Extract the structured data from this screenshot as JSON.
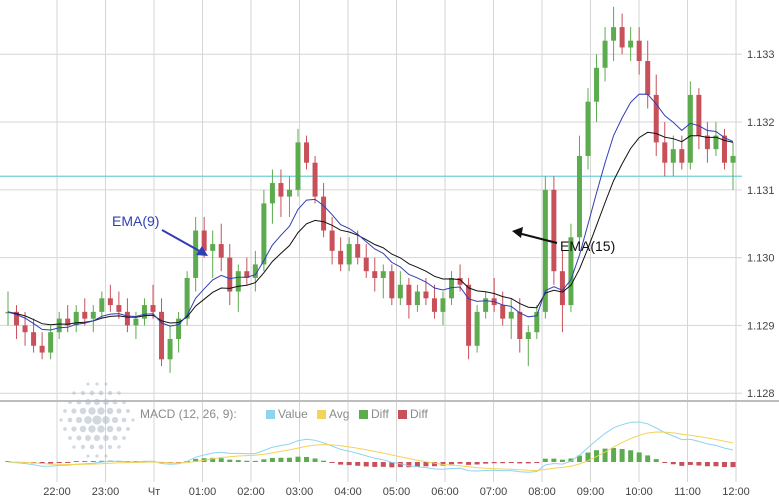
{
  "chart_data": {
    "type": "candlestick",
    "price_axis": {
      "ticks": [
        "1.128",
        "1.129",
        "1.130",
        "1.131",
        "1.132",
        "1.133"
      ],
      "ylim": [
        1.1279,
        1.1338
      ]
    },
    "time_axis": {
      "ticks": [
        "22:00",
        "23:00",
        "Чт",
        "01:00",
        "02:00",
        "03:00",
        "04:00",
        "05:00",
        "06:00",
        "07:00",
        "08:00",
        "09:00",
        "10:00",
        "11:00",
        "12:00"
      ]
    },
    "grid": true,
    "horizontal_line": {
      "value": 1.1312,
      "color": "#6fcfd6"
    },
    "series_colors": {
      "up": "#5cab4f",
      "down": "#c8505a",
      "ema9": "#2f3fb3",
      "ema15": "#111111"
    },
    "candles": [
      [
        1.1292,
        1.1295,
        1.129,
        1.1292
      ],
      [
        1.1292,
        1.1293,
        1.1288,
        1.129
      ],
      [
        1.129,
        1.1292,
        1.1287,
        1.1289
      ],
      [
        1.1289,
        1.1291,
        1.1286,
        1.1287
      ],
      [
        1.1287,
        1.1289,
        1.1285,
        1.1286
      ],
      [
        1.1286,
        1.129,
        1.1285,
        1.1289
      ],
      [
        1.1289,
        1.1292,
        1.1288,
        1.1291
      ],
      [
        1.1291,
        1.1293,
        1.1289,
        1.129
      ],
      [
        1.129,
        1.1293,
        1.1289,
        1.1292
      ],
      [
        1.1292,
        1.1294,
        1.129,
        1.1291
      ],
      [
        1.1291,
        1.1293,
        1.1289,
        1.1292
      ],
      [
        1.1292,
        1.1295,
        1.1291,
        1.1294
      ],
      [
        1.1294,
        1.1296,
        1.1292,
        1.1293
      ],
      [
        1.1293,
        1.1295,
        1.1291,
        1.1292
      ],
      [
        1.1292,
        1.1294,
        1.1289,
        1.129
      ],
      [
        1.129,
        1.1292,
        1.1288,
        1.1291
      ],
      [
        1.1291,
        1.1294,
        1.129,
        1.1293
      ],
      [
        1.1293,
        1.1296,
        1.1291,
        1.1292
      ],
      [
        1.1292,
        1.1294,
        1.1284,
        1.1285
      ],
      [
        1.1285,
        1.129,
        1.1283,
        1.1288
      ],
      [
        1.1288,
        1.1292,
        1.1286,
        1.1291
      ],
      [
        1.1291,
        1.1298,
        1.129,
        1.1297
      ],
      [
        1.1297,
        1.1306,
        1.1295,
        1.1304
      ],
      [
        1.1304,
        1.1306,
        1.13,
        1.1301
      ],
      [
        1.1301,
        1.1304,
        1.1297,
        1.1302
      ],
      [
        1.1302,
        1.1305,
        1.1298,
        1.13
      ],
      [
        1.13,
        1.1302,
        1.1293,
        1.1295
      ],
      [
        1.1295,
        1.1299,
        1.1292,
        1.1298
      ],
      [
        1.1298,
        1.13,
        1.1296,
        1.1297
      ],
      [
        1.1297,
        1.1301,
        1.1295,
        1.1299
      ],
      [
        1.1299,
        1.131,
        1.1298,
        1.1308
      ],
      [
        1.1308,
        1.1313,
        1.1305,
        1.1311
      ],
      [
        1.1311,
        1.1313,
        1.1306,
        1.1309
      ],
      [
        1.1309,
        1.1312,
        1.1306,
        1.131
      ],
      [
        1.131,
        1.1319,
        1.1309,
        1.1317
      ],
      [
        1.1317,
        1.1318,
        1.1313,
        1.1314
      ],
      [
        1.1314,
        1.1315,
        1.1308,
        1.1309
      ],
      [
        1.1309,
        1.1311,
        1.1303,
        1.1304
      ],
      [
        1.1304,
        1.1306,
        1.1299,
        1.1301
      ],
      [
        1.1301,
        1.1303,
        1.1298,
        1.1299
      ],
      [
        1.1299,
        1.1303,
        1.1298,
        1.1302
      ],
      [
        1.1302,
        1.1304,
        1.1299,
        1.13
      ],
      [
        1.13,
        1.1302,
        1.1297,
        1.1298
      ],
      [
        1.1298,
        1.13,
        1.1295,
        1.1297
      ],
      [
        1.1297,
        1.1299,
        1.1294,
        1.1298
      ],
      [
        1.1298,
        1.1299,
        1.1293,
        1.1294
      ],
      [
        1.1294,
        1.1298,
        1.1293,
        1.1296
      ],
      [
        1.1296,
        1.1297,
        1.1291,
        1.1293
      ],
      [
        1.1293,
        1.1296,
        1.1292,
        1.1295
      ],
      [
        1.1295,
        1.1297,
        1.1293,
        1.1294
      ],
      [
        1.1294,
        1.1296,
        1.1291,
        1.1292
      ],
      [
        1.1292,
        1.1295,
        1.129,
        1.1294
      ],
      [
        1.1294,
        1.1298,
        1.1293,
        1.1297
      ],
      [
        1.1297,
        1.1299,
        1.1295,
        1.1296
      ],
      [
        1.1296,
        1.1297,
        1.1285,
        1.1287
      ],
      [
        1.1287,
        1.1293,
        1.1286,
        1.1292
      ],
      [
        1.1292,
        1.1295,
        1.1291,
        1.1294
      ],
      [
        1.1294,
        1.1297,
        1.1292,
        1.1293
      ],
      [
        1.1293,
        1.1295,
        1.129,
        1.1291
      ],
      [
        1.1291,
        1.1294,
        1.1288,
        1.1292
      ],
      [
        1.1292,
        1.1294,
        1.1286,
        1.1288
      ],
      [
        1.1288,
        1.129,
        1.1284,
        1.1289
      ],
      [
        1.1289,
        1.1293,
        1.1288,
        1.1292
      ],
      [
        1.1292,
        1.1312,
        1.1291,
        1.131
      ],
      [
        1.131,
        1.1312,
        1.1296,
        1.1298
      ],
      [
        1.1298,
        1.1301,
        1.1289,
        1.1293
      ],
      [
        1.1293,
        1.1305,
        1.1292,
        1.1303
      ],
      [
        1.1303,
        1.1318,
        1.1302,
        1.1315
      ],
      [
        1.1315,
        1.1325,
        1.1313,
        1.1323
      ],
      [
        1.1323,
        1.133,
        1.132,
        1.1328
      ],
      [
        1.1328,
        1.1334,
        1.1326,
        1.1332
      ],
      [
        1.1332,
        1.1337,
        1.1329,
        1.1334
      ],
      [
        1.1334,
        1.1336,
        1.133,
        1.1331
      ],
      [
        1.1331,
        1.1334,
        1.1329,
        1.1332
      ],
      [
        1.1332,
        1.1334,
        1.1327,
        1.1329
      ],
      [
        1.1329,
        1.1332,
        1.1322,
        1.1324
      ],
      [
        1.1324,
        1.1327,
        1.1315,
        1.1317
      ],
      [
        1.1317,
        1.132,
        1.1312,
        1.1314
      ],
      [
        1.1314,
        1.1318,
        1.1312,
        1.1316
      ],
      [
        1.1316,
        1.1318,
        1.1313,
        1.1314
      ],
      [
        1.1314,
        1.1326,
        1.1313,
        1.1324
      ],
      [
        1.1324,
        1.1325,
        1.1316,
        1.1318
      ],
      [
        1.1318,
        1.132,
        1.1314,
        1.1316
      ],
      [
        1.1316,
        1.132,
        1.1315,
        1.1318
      ],
      [
        1.1318,
        1.1319,
        1.1313,
        1.1314
      ],
      [
        1.1314,
        1.1317,
        1.131,
        1.1315
      ]
    ]
  },
  "annotations": {
    "ema9_label": "EMA(9)",
    "ema15_label": "EMA(15)",
    "ema9_color": "#2f3fb3",
    "ema15_color": "#111111"
  },
  "macd": {
    "title": "MACD (12, 26, 9):",
    "legend": [
      {
        "label": "Value",
        "color": "#8fd3f0"
      },
      {
        "label": "Avg",
        "color": "#f3d35a"
      },
      {
        "label": "Diff",
        "color": "#5cab4f"
      },
      {
        "label": "Diff",
        "color": "#c8505a"
      }
    ]
  }
}
